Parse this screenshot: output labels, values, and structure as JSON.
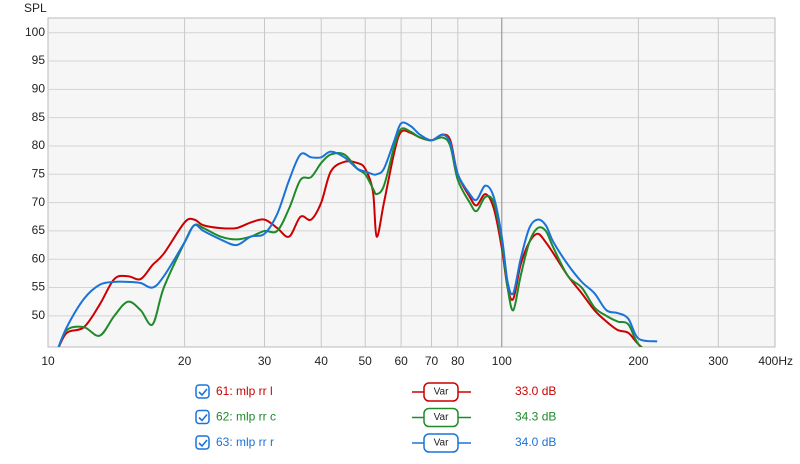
{
  "chart_data": {
    "type": "line",
    "ylabel": "SPL",
    "xscale": "log",
    "grid": true,
    "xlim": [
      10,
      400
    ],
    "ylim": [
      44.5,
      102.6
    ],
    "xticks": [
      10,
      20,
      30,
      40,
      50,
      60,
      70,
      80,
      100,
      200,
      300,
      {
        "value": 400,
        "label": "400Hz"
      }
    ],
    "yticks": [
      50,
      55,
      60,
      65,
      70,
      75,
      80,
      85,
      90,
      95,
      100
    ],
    "x": [
      10.5,
      11,
      12,
      13,
      14,
      15,
      16,
      17,
      18,
      20,
      21,
      22,
      24,
      26,
      28,
      30,
      32,
      34,
      36,
      38,
      40,
      42,
      45,
      48,
      50,
      52,
      53,
      55,
      58,
      60,
      63,
      66,
      70,
      74,
      77,
      80,
      85,
      88,
      92,
      96,
      100,
      103,
      106,
      110,
      115,
      120,
      125,
      130,
      140,
      150,
      160,
      170,
      180,
      190,
      200,
      220
    ],
    "series": [
      {
        "name": "61: mlp rr l",
        "color": "#cc0000",
        "button": "Var",
        "level": "33.0 dB",
        "values": [
          44,
          47,
          48,
          52,
          56.5,
          57,
          56.5,
          59,
          61,
          66.5,
          67,
          66,
          65.5,
          65.5,
          66.5,
          67,
          65.5,
          64,
          67.5,
          67,
          70,
          75.5,
          77.2,
          77,
          76,
          72,
          64,
          70,
          79,
          82.5,
          82.3,
          81.5,
          81,
          82,
          81,
          75,
          71,
          69.5,
          71.5,
          69,
          62,
          55,
          53,
          59,
          63,
          64.5,
          63,
          61,
          57,
          54,
          51,
          49,
          47.5,
          47,
          45,
          42
        ]
      },
      {
        "name": "62: mlp rr c",
        "color": "#1e8a2a",
        "button": "Var",
        "level": "34.3 dB",
        "values": [
          44,
          47.5,
          48,
          46.5,
          50,
          52.5,
          51,
          48.5,
          55,
          63,
          66,
          65.5,
          64,
          63.5,
          64,
          65,
          65,
          69,
          74,
          74.5,
          77,
          78.5,
          78.5,
          76,
          75,
          72.5,
          71.5,
          73,
          80,
          83,
          82.5,
          81.5,
          81,
          81.5,
          80,
          74,
          70,
          68.5,
          71,
          70,
          63,
          55,
          51,
          57,
          63,
          65.5,
          65,
          62,
          57,
          55,
          51.5,
          50,
          49,
          48.5,
          45,
          42
        ]
      },
      {
        "name": "63: mlp rr r",
        "color": "#1a73d9",
        "button": "Var",
        "level": "34.0 dB",
        "values": [
          44,
          48,
          53,
          55.5,
          56,
          56,
          55.8,
          55,
          57,
          63,
          66,
          65,
          63.5,
          62.5,
          64,
          64.5,
          68,
          74,
          78.5,
          78,
          78,
          79,
          78,
          76,
          75.5,
          75,
          75,
          76,
          81,
          84,
          83.5,
          82,
          81,
          82,
          80.5,
          75,
          71.5,
          70.5,
          73,
          71,
          64,
          56,
          54,
          60,
          65.5,
          67,
          66,
          63,
          59,
          56,
          54,
          51,
          50.5,
          49.5,
          46,
          45.5
        ]
      }
    ]
  }
}
